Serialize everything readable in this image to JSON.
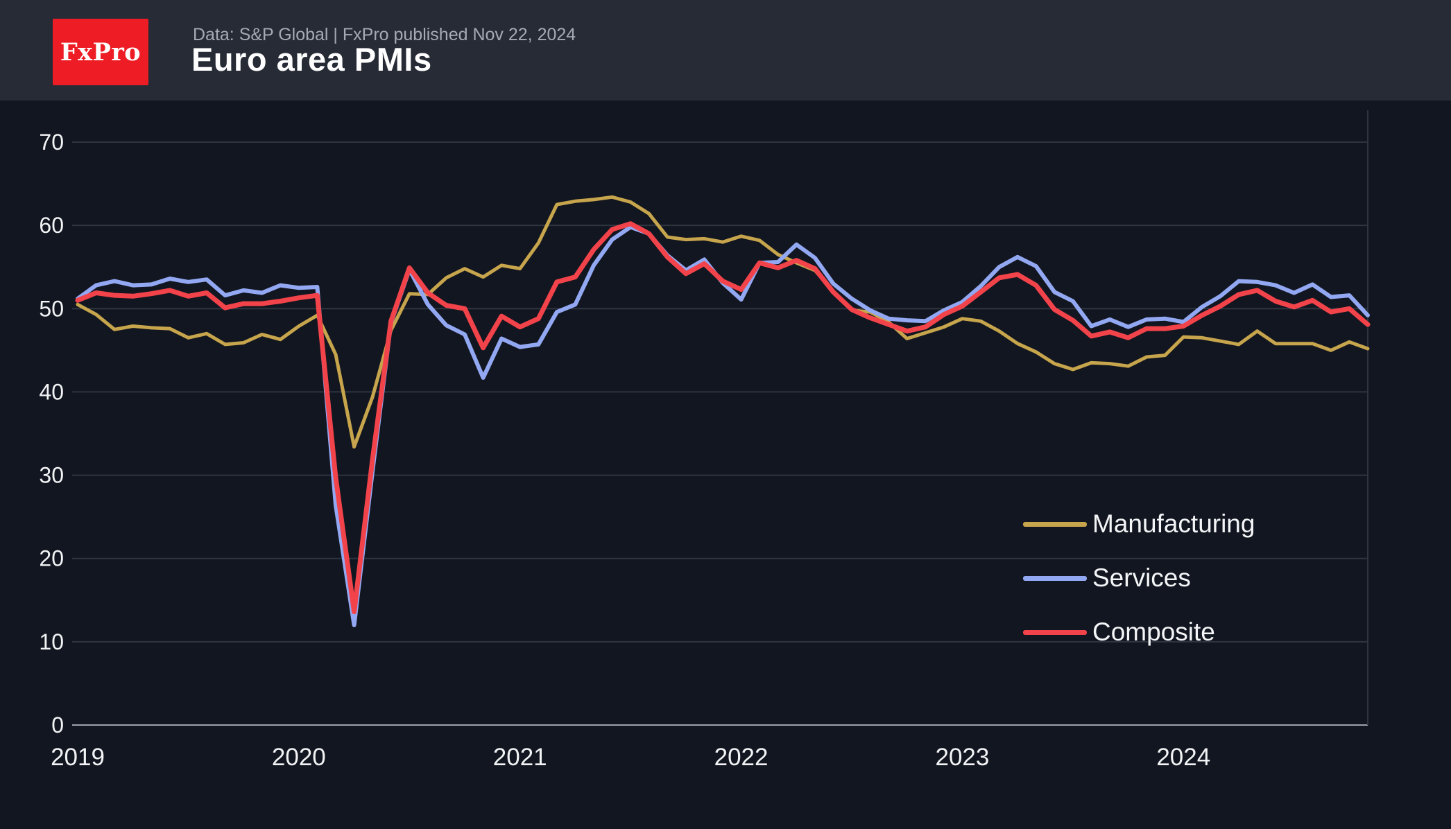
{
  "header": {
    "logo_text": "FxPro",
    "source_line": "Data: S&P Global | FxPro published Nov 22, 2024",
    "title": "Euro area PMIs"
  },
  "colors": {
    "page_background": "#121620",
    "header_background": "#272b36",
    "grid": "#2e3440",
    "axis_line": "#9da1a9",
    "axis_text": "#f2f3f5",
    "subtitle_text": "#a6aab3",
    "logo_red": "#ee1c25",
    "manufacturing": "#c7a54d",
    "services": "#93a8f2",
    "composite": "#f2434b"
  },
  "chart_data": {
    "type": "line",
    "title": "Euro area PMIs",
    "xlabel": "",
    "ylabel": "",
    "ylim": [
      0,
      70
    ],
    "yticks": [
      0,
      10,
      20,
      30,
      40,
      50,
      60,
      70
    ],
    "grid": "horizontal",
    "legend_position": "right-middle",
    "x": [
      "2019-01",
      "2019-02",
      "2019-03",
      "2019-04",
      "2019-05",
      "2019-06",
      "2019-07",
      "2019-08",
      "2019-09",
      "2019-10",
      "2019-11",
      "2019-12",
      "2020-01",
      "2020-02",
      "2020-03",
      "2020-04",
      "2020-05",
      "2020-06",
      "2020-07",
      "2020-08",
      "2020-09",
      "2020-10",
      "2020-11",
      "2020-12",
      "2021-01",
      "2021-02",
      "2021-03",
      "2021-04",
      "2021-05",
      "2021-06",
      "2021-07",
      "2021-08",
      "2021-09",
      "2021-10",
      "2021-11",
      "2021-12",
      "2022-01",
      "2022-02",
      "2022-03",
      "2022-04",
      "2022-05",
      "2022-06",
      "2022-07",
      "2022-08",
      "2022-09",
      "2022-10",
      "2022-11",
      "2022-12",
      "2023-01",
      "2023-02",
      "2023-03",
      "2023-04",
      "2023-05",
      "2023-06",
      "2023-07",
      "2023-08",
      "2023-09",
      "2023-10",
      "2023-11",
      "2023-12",
      "2024-01",
      "2024-02",
      "2024-03",
      "2024-04",
      "2024-05",
      "2024-06",
      "2024-07",
      "2024-08",
      "2024-09",
      "2024-10",
      "2024-11"
    ],
    "xticks": [
      {
        "label": "2019",
        "index": 0
      },
      {
        "label": "2020",
        "index": 12
      },
      {
        "label": "2021",
        "index": 24
      },
      {
        "label": "2022",
        "index": 36
      },
      {
        "label": "2023",
        "index": 48
      },
      {
        "label": "2024",
        "index": 60
      }
    ],
    "series": [
      {
        "name": "Manufacturing",
        "color": "#c7a54d",
        "stroke_width": 5,
        "values": [
          50.5,
          49.3,
          47.5,
          47.9,
          47.7,
          47.6,
          46.5,
          47.0,
          45.7,
          45.9,
          46.9,
          46.3,
          47.9,
          49.2,
          44.5,
          33.4,
          39.4,
          47.4,
          51.8,
          51.7,
          53.7,
          54.8,
          53.8,
          55.2,
          54.8,
          57.9,
          62.5,
          62.9,
          63.1,
          63.4,
          62.8,
          61.4,
          58.6,
          58.3,
          58.4,
          58.0,
          58.7,
          58.2,
          56.5,
          55.5,
          54.6,
          52.1,
          49.8,
          49.6,
          48.4,
          46.4,
          47.1,
          47.8,
          48.8,
          48.5,
          47.3,
          45.8,
          44.8,
          43.4,
          42.7,
          43.5,
          43.4,
          43.1,
          44.2,
          44.4,
          46.6,
          46.5,
          46.1,
          45.7,
          47.3,
          45.8,
          45.8,
          45.8,
          45.0,
          46.0,
          45.2
        ]
      },
      {
        "name": "Services",
        "color": "#93a8f2",
        "stroke_width": 6,
        "values": [
          51.2,
          52.8,
          53.3,
          52.8,
          52.9,
          53.6,
          53.2,
          53.5,
          51.6,
          52.2,
          51.9,
          52.8,
          52.5,
          52.6,
          26.4,
          12.0,
          30.5,
          48.3,
          54.7,
          50.5,
          48.0,
          46.9,
          41.7,
          46.4,
          45.4,
          45.7,
          49.6,
          50.5,
          55.2,
          58.3,
          59.8,
          59.0,
          56.4,
          54.6,
          55.9,
          53.1,
          51.1,
          55.5,
          55.6,
          57.7,
          56.1,
          53.0,
          51.2,
          49.8,
          48.8,
          48.6,
          48.5,
          49.8,
          50.8,
          52.7,
          55.0,
          56.2,
          55.1,
          52.0,
          50.9,
          47.9,
          48.7,
          47.8,
          48.7,
          48.8,
          48.4,
          50.2,
          51.5,
          53.3,
          53.2,
          52.8,
          51.9,
          52.9,
          51.4,
          51.6,
          49.2
        ]
      },
      {
        "name": "Composite",
        "color": "#f2434b",
        "stroke_width": 7,
        "values": [
          51.0,
          51.9,
          51.6,
          51.5,
          51.8,
          52.2,
          51.5,
          51.9,
          50.1,
          50.6,
          50.6,
          50.9,
          51.3,
          51.6,
          29.7,
          13.6,
          31.9,
          48.5,
          54.9,
          51.9,
          50.4,
          50.0,
          45.3,
          49.1,
          47.8,
          48.8,
          53.2,
          53.8,
          57.1,
          59.5,
          60.2,
          59.0,
          56.2,
          54.2,
          55.4,
          53.3,
          52.3,
          55.5,
          54.9,
          55.8,
          54.8,
          52.0,
          49.9,
          48.9,
          48.1,
          47.3,
          47.8,
          49.3,
          50.3,
          52.0,
          53.7,
          54.1,
          52.8,
          49.9,
          48.6,
          46.7,
          47.2,
          46.5,
          47.6,
          47.6,
          47.9,
          49.2,
          50.3,
          51.7,
          52.2,
          50.9,
          50.2,
          51.0,
          49.6,
          50.0,
          48.1
        ]
      }
    ]
  },
  "legend": {
    "items": [
      {
        "label": "Manufacturing"
      },
      {
        "label": "Services"
      },
      {
        "label": "Composite"
      }
    ]
  }
}
